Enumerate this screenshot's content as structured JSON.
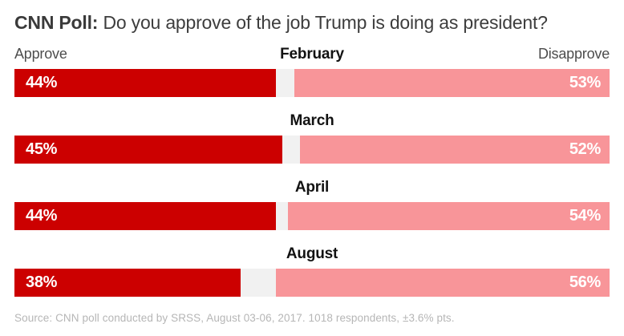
{
  "title": {
    "prefix": "CNN Poll:",
    "question": "Do you approve of the job Trump is doing as president?"
  },
  "legend": {
    "left": "Approve",
    "right": "Disapprove"
  },
  "source": "Source: CNN poll conducted by SRSS, August 03-06, 2017. 1018 respondents, ±3.6% pts.",
  "colors": {
    "approve": "#cc0000",
    "disapprove": "#f89599",
    "track": "#f1f1f1",
    "month_label": "#121212",
    "legend_label": "#4d4d4d",
    "title_text": "#3a3a3a",
    "source_text": "#b6b6b6"
  },
  "chart_data": {
    "type": "bar",
    "orientation": "horizontal",
    "stacked_opposed": true,
    "categories": [
      "February",
      "March",
      "April",
      "August"
    ],
    "series": [
      {
        "name": "Approve",
        "color": "#cc0000",
        "values": [
          44,
          45,
          44,
          38
        ]
      },
      {
        "name": "Disapprove",
        "color": "#f89599",
        "values": [
          53,
          52,
          54,
          56
        ]
      }
    ],
    "value_suffix": "%",
    "x_range": [
      0,
      100
    ],
    "legend_position": "top",
    "grid": false
  }
}
